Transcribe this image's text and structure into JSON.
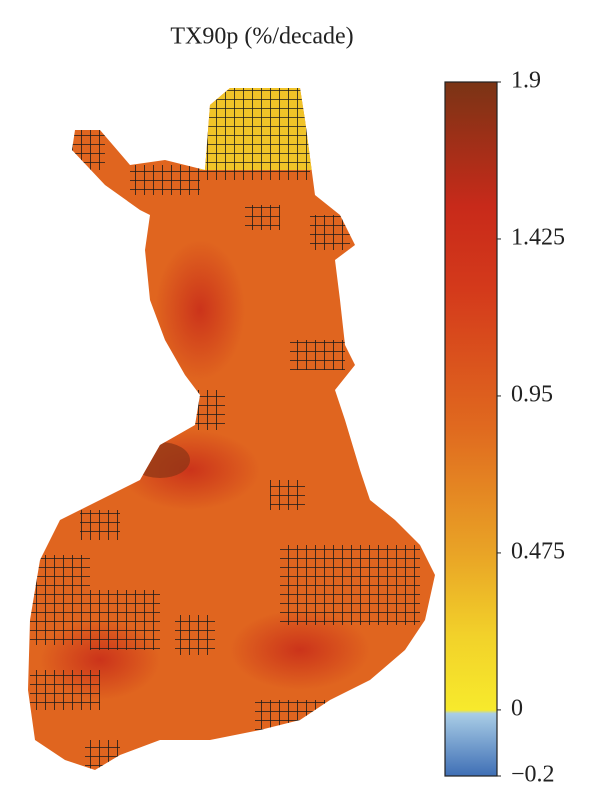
{
  "chart_data": {
    "type": "map",
    "title": "TX90p (%/decade)",
    "colorbar": {
      "lim": [
        -0.2,
        1.9
      ],
      "ticks": [
        1.9,
        1.425,
        0.95,
        0.475,
        0,
        {
          "value": -0.2,
          "label": "−0.2"
        }
      ]
    }
  }
}
